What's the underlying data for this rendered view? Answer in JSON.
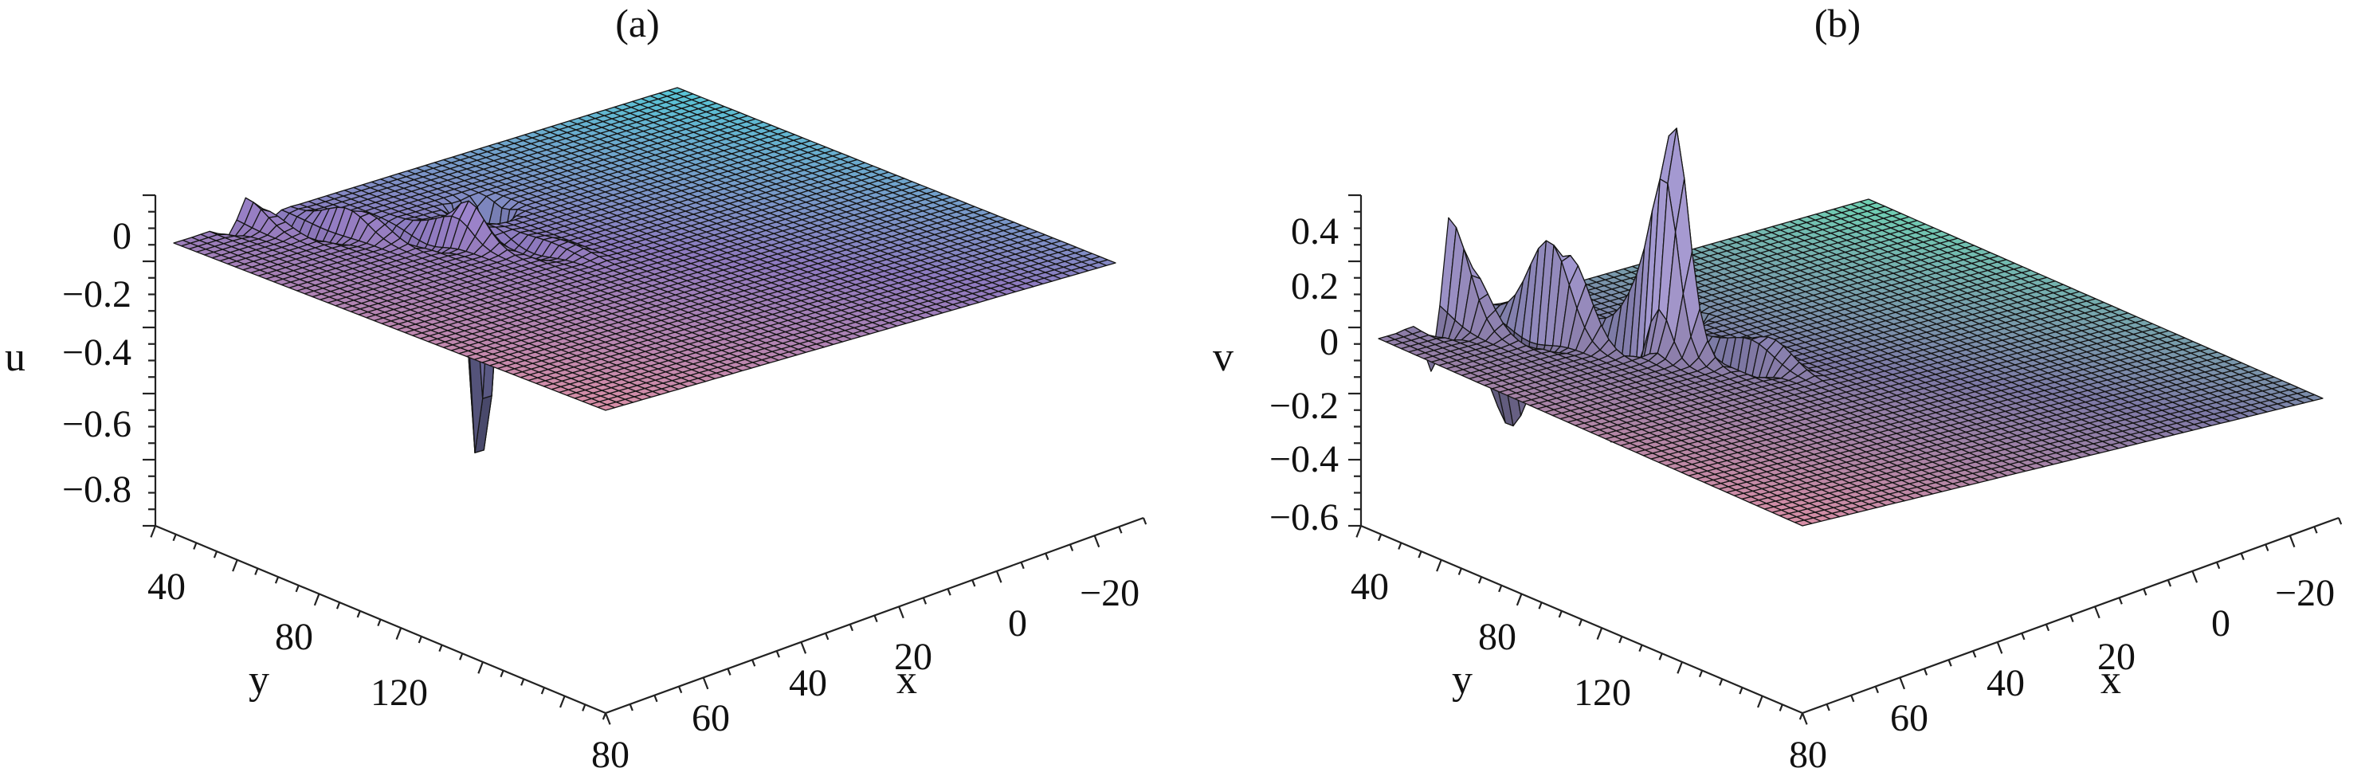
{
  "chart_data": [
    {
      "type": "surface",
      "panel_label": "(a)",
      "z_label": "u",
      "x_label": "x",
      "y_label": "y",
      "z_ticks": [
        "0",
        "−0.2",
        "−0.4",
        "−0.6",
        "−0.8"
      ],
      "z_tick_values": [
        0,
        -0.2,
        -0.4,
        -0.6,
        -0.8
      ],
      "x_ticks": [
        "−20",
        "0",
        "20",
        "40",
        "60"
      ],
      "x_tick_values": [
        -20,
        0,
        20,
        40,
        60
      ],
      "y_ticks": [
        "40",
        "80",
        "120"
      ],
      "y_tick_values": [
        40,
        80,
        120
      ],
      "axis_corner_label": "80",
      "xlim": [
        -28,
        68
      ],
      "ylim": [
        10,
        160
      ],
      "zlim": [
        -0.9,
        0.1
      ],
      "colormap": [
        "#d98fa6",
        "#8f7ac0",
        "#58c6d6"
      ],
      "features": {
        "wave_train": {
          "x_start": 30,
          "x_end": 66,
          "y_slope": -2.3,
          "y_intercept": 135,
          "wavelength": 9.0,
          "amplitude": 0.07,
          "width": 7
        },
        "peak": {
          "x": 34,
          "y": 53,
          "height": 0.06
        },
        "trough": {
          "x": 26,
          "y": 40,
          "depth": -0.86
        }
      }
    },
    {
      "type": "surface",
      "panel_label": "(b)",
      "z_label": "v",
      "x_label": "x",
      "y_label": "y",
      "z_ticks": [
        "0.4",
        "0.2",
        "0",
        "−0.2",
        "−0.4",
        "−0.6"
      ],
      "z_tick_values": [
        0.4,
        0.2,
        0,
        -0.2,
        -0.4,
        -0.6
      ],
      "x_ticks": [
        "−20",
        "0",
        "20",
        "40",
        "60"
      ],
      "x_tick_values": [
        -20,
        0,
        20,
        40,
        60
      ],
      "y_ticks": [
        "40",
        "80",
        "120"
      ],
      "y_tick_values": [
        40,
        80,
        120
      ],
      "axis_corner_label": "80",
      "xlim": [
        -28,
        68
      ],
      "ylim": [
        10,
        160
      ],
      "zlim": [
        -0.65,
        0.55
      ],
      "colormap": [
        "#d98fa6",
        "#7f7aa8",
        "#70d2b4"
      ],
      "features": {
        "wave_train": {
          "x_start": 30,
          "x_end": 66,
          "y_slope": -2.3,
          "y_intercept": 135,
          "wavelength": 9.0,
          "amplitude": 0.38,
          "width": 7
        },
        "peak": {
          "x": 36,
          "y": 55,
          "height": 0.5
        },
        "trough": {
          "x": 26,
          "y": 38,
          "depth": -0.58
        }
      }
    }
  ]
}
